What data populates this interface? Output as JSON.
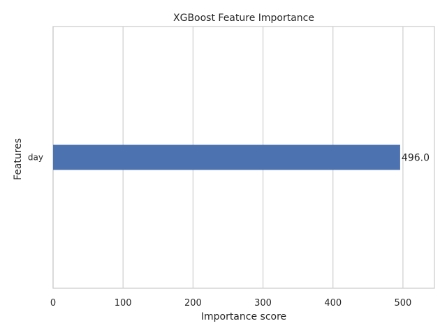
{
  "chart_data": {
    "type": "bar",
    "orientation": "horizontal",
    "title": "XGBoost Feature Importance",
    "xlabel": "Importance score",
    "ylabel": "Features",
    "categories": [
      "day"
    ],
    "values": [
      496.0
    ],
    "value_labels": [
      "496.0"
    ],
    "xlim": [
      0,
      545
    ],
    "xticks": [
      0,
      100,
      200,
      300,
      400,
      500
    ],
    "xtick_labels": [
      "0",
      "100",
      "200",
      "300",
      "400",
      "500"
    ],
    "grid": true,
    "legend": "none",
    "colors": {
      "bar": "#4c72b0",
      "grid": "#d0d0d0",
      "axis": "#cccccc",
      "text": "#262626",
      "background": "#ffffff"
    }
  }
}
